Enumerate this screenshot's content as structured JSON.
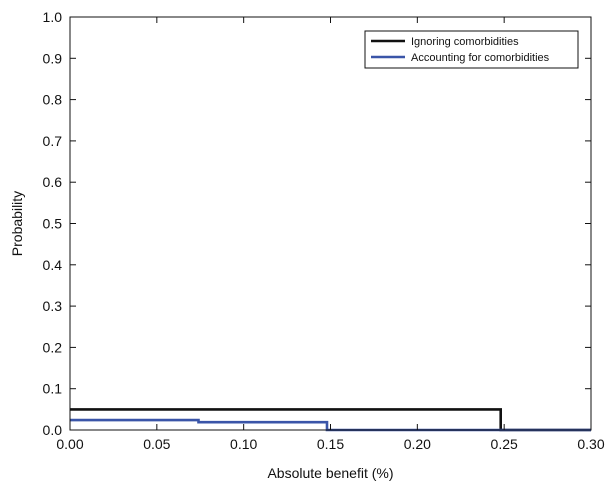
{
  "chart_data": {
    "type": "line",
    "xlabel": "Absolute benefit (%)",
    "ylabel": "Probability",
    "xlim": [
      0,
      0.3
    ],
    "ylim": [
      0,
      1.0
    ],
    "x_ticks": [
      "0.00",
      "0.05",
      "0.10",
      "0.15",
      "0.20",
      "0.25",
      "0.30"
    ],
    "y_ticks": [
      "0.0",
      "0.1",
      "0.2",
      "0.3",
      "0.4",
      "0.5",
      "0.6",
      "0.7",
      "0.8",
      "0.9",
      "1.0"
    ],
    "grid": false,
    "legend_position": "top-right",
    "series": [
      {
        "name": "Ignoring comorbidities",
        "color": "#111111",
        "x": [
          0.0,
          0.248,
          0.248,
          0.3
        ],
        "y": [
          0.05,
          0.05,
          0.0,
          0.0
        ]
      },
      {
        "name": "Accounting for comorbidities",
        "color": "#3a55a8",
        "x": [
          0.0,
          0.074,
          0.074,
          0.148,
          0.148,
          0.3
        ],
        "y": [
          0.024,
          0.024,
          0.019,
          0.019,
          0.0,
          0.0
        ]
      }
    ]
  }
}
